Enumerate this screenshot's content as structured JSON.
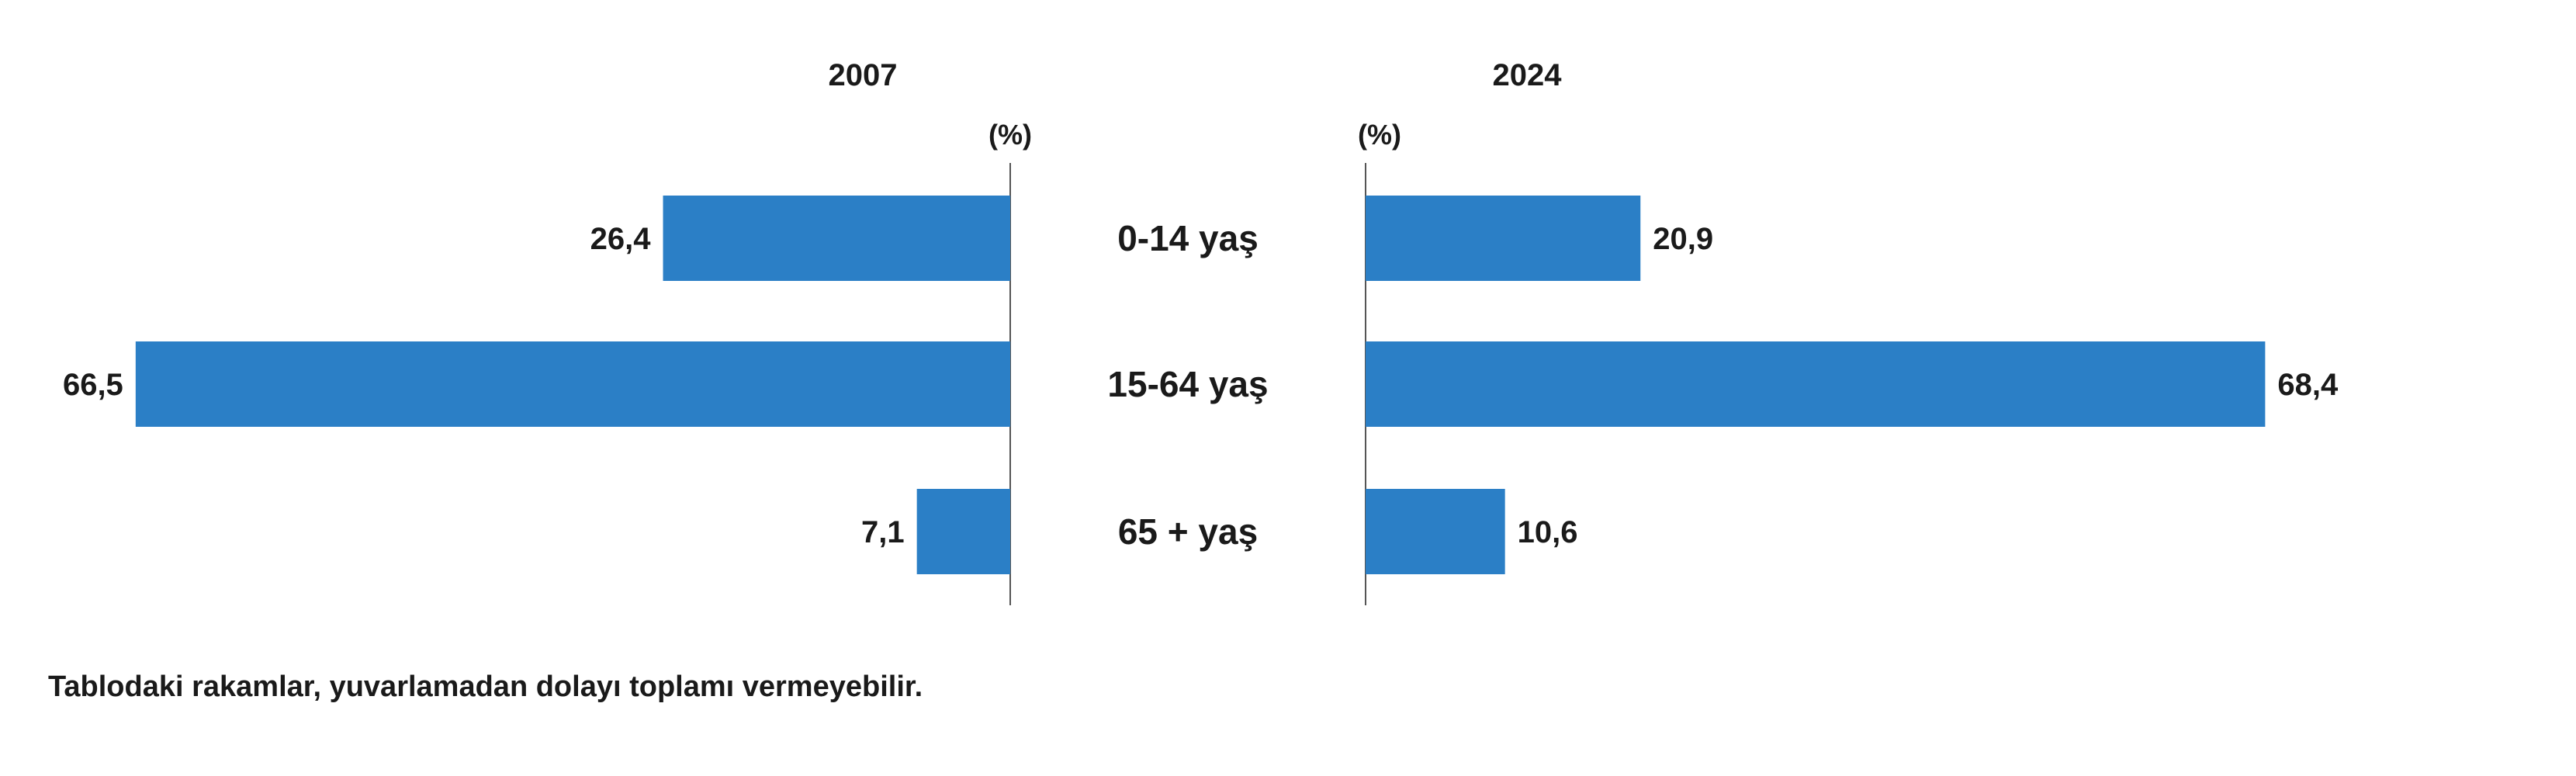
{
  "chart_data": {
    "type": "bar",
    "orientation": "horizontal",
    "categories": [
      "0-14 yaş",
      "15-64 yaş",
      "65 + yaş"
    ],
    "series": [
      {
        "name": "2007",
        "values": [
          26.4,
          66.5,
          7.1
        ],
        "labels": [
          "26,4",
          "66,5",
          "7,1"
        ]
      },
      {
        "name": "2024",
        "values": [
          20.9,
          68.4,
          10.6
        ],
        "labels": [
          "20,9",
          "68,4",
          "10,6"
        ]
      }
    ],
    "unit_label": "(%)",
    "bar_color": "#2b7fc6",
    "grid": false
  },
  "note": "Tablodaki rakamlar, yuvarlamadan dolayı toplamı vermeyebilir."
}
